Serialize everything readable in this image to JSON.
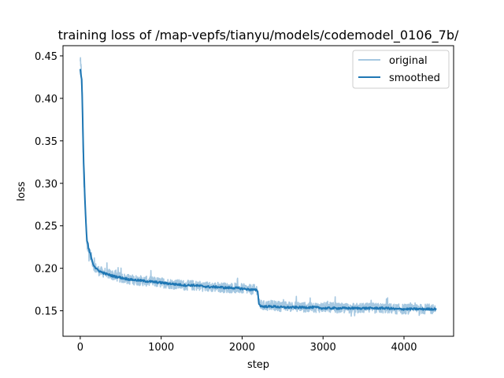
{
  "chart_data": {
    "type": "line",
    "title": "training loss of /map-vepfs/tianyu/models/codemodel_0106_7b/",
    "xlabel": "step",
    "ylabel": "loss",
    "xlim": [
      -213,
      4613
    ],
    "ylim": [
      0.12,
      0.462
    ],
    "xticks": [
      0,
      1000,
      2000,
      3000,
      4000
    ],
    "xtick_labels": [
      "0",
      "1000",
      "2000",
      "3000",
      "4000"
    ],
    "yticks": [
      0.15,
      0.2,
      0.25,
      0.3,
      0.35,
      0.4,
      0.45
    ],
    "ytick_labels": [
      "0.15",
      "0.20",
      "0.25",
      "0.30",
      "0.35",
      "0.40",
      "0.45"
    ],
    "grid": false,
    "legend_position": "top-right",
    "series": [
      {
        "name": "original",
        "color": "#a6c8e1",
        "x": [
          0,
          20,
          40,
          60,
          80,
          100,
          130,
          160,
          200,
          250,
          300,
          400,
          500,
          600,
          700,
          800,
          900,
          1000,
          1100,
          1200,
          1300,
          1400,
          1500,
          1600,
          1700,
          1800,
          1900,
          2000,
          2100,
          2190,
          2210,
          2250,
          2300,
          2400,
          2500,
          2600,
          2700,
          2800,
          2900,
          3000,
          3100,
          3200,
          3300,
          3400,
          3500,
          3600,
          3700,
          3800,
          3900,
          4000,
          4100,
          4200,
          4300,
          4400
        ],
        "values": [
          0.44,
          0.42,
          0.32,
          0.27,
          0.232,
          0.222,
          0.215,
          0.205,
          0.199,
          0.196,
          0.195,
          0.192,
          0.189,
          0.187,
          0.186,
          0.185,
          0.184,
          0.183,
          0.182,
          0.181,
          0.18,
          0.18,
          0.179,
          0.178,
          0.178,
          0.177,
          0.177,
          0.176,
          0.175,
          0.175,
          0.158,
          0.156,
          0.156,
          0.156,
          0.155,
          0.155,
          0.155,
          0.154,
          0.154,
          0.154,
          0.154,
          0.153,
          0.153,
          0.153,
          0.153,
          0.153,
          0.153,
          0.153,
          0.152,
          0.152,
          0.152,
          0.152,
          0.152,
          0.152
        ]
      },
      {
        "name": "smoothed",
        "color": "#1f77b4",
        "x": [
          0,
          20,
          40,
          60,
          80,
          100,
          130,
          160,
          200,
          250,
          300,
          400,
          500,
          600,
          700,
          800,
          900,
          1000,
          1100,
          1200,
          1300,
          1400,
          1500,
          1600,
          1700,
          1800,
          1900,
          2000,
          2100,
          2190,
          2210,
          2250,
          2300,
          2400,
          2500,
          2600,
          2700,
          2800,
          2900,
          3000,
          3100,
          3200,
          3300,
          3400,
          3500,
          3600,
          3700,
          3800,
          3900,
          4000,
          4100,
          4200,
          4300,
          4400
        ],
        "values": [
          0.434,
          0.42,
          0.33,
          0.275,
          0.235,
          0.224,
          0.215,
          0.205,
          0.199,
          0.196,
          0.194,
          0.191,
          0.189,
          0.187,
          0.186,
          0.185,
          0.184,
          0.183,
          0.182,
          0.181,
          0.18,
          0.18,
          0.179,
          0.178,
          0.178,
          0.177,
          0.177,
          0.176,
          0.175,
          0.174,
          0.157,
          0.155,
          0.155,
          0.155,
          0.154,
          0.154,
          0.154,
          0.154,
          0.154,
          0.153,
          0.153,
          0.153,
          0.153,
          0.153,
          0.153,
          0.153,
          0.153,
          0.153,
          0.152,
          0.152,
          0.152,
          0.152,
          0.152,
          0.152
        ]
      }
    ]
  }
}
